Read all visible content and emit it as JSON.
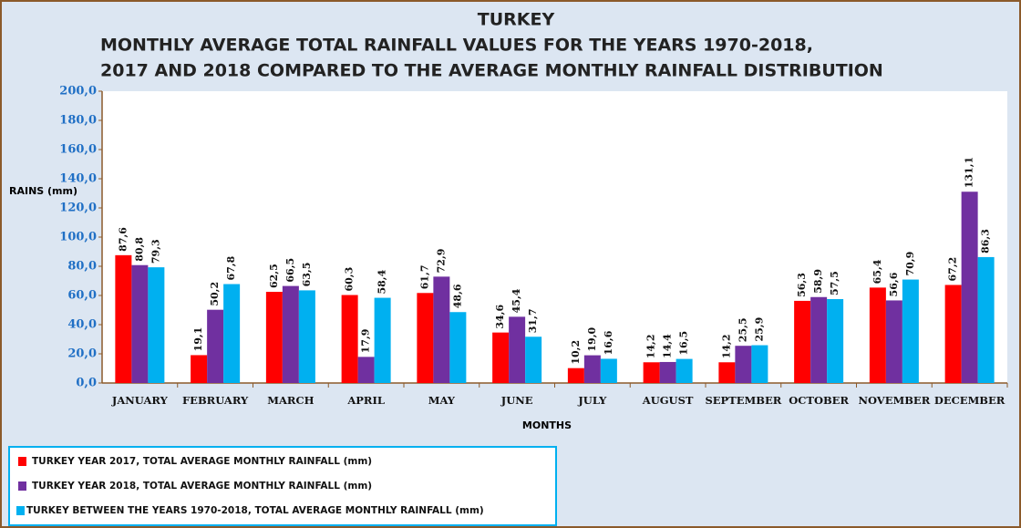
{
  "chart_data": {
    "type": "bar",
    "title": "TURKEY",
    "subtitle": [
      "MONTHLY AVERAGE TOTAL RAINFALL VALUES FOR THE YEARS 1970-2018,",
      "2017 AND 2018 COMPARED TO THE AVERAGE MONTHLY RAINFALL DISTRIBUTION"
    ],
    "ylabel": "RAINS (mm)",
    "xlabel": "MONTHS",
    "categories": [
      "JANUARY",
      "FEBRUARY",
      "MARCH",
      "APRIL",
      "MAY",
      "JUNE",
      "JULY",
      "AUGUST",
      "SEPTEMBER",
      "OCTOBER",
      "NOVEMBER",
      "DECEMBER"
    ],
    "series": [
      {
        "name": "TURKEY YEAR 2017, TOTAL AVERAGE MONTHLY RAINFALL (mm)",
        "color": "#ff0000",
        "values": [
          87.6,
          19.1,
          62.5,
          60.3,
          61.7,
          34.6,
          10.2,
          14.2,
          14.2,
          56.3,
          65.4,
          67.2
        ],
        "value_labels": [
          "87,6",
          "19,1",
          "62,5",
          "60,3",
          "61,7",
          "34,6",
          "10,2",
          "14,2",
          "14,2",
          "56,3",
          "65,4",
          "67,2"
        ]
      },
      {
        "name": "TURKEY YEAR 2018, TOTAL AVERAGE MONTHLY RAINFALL (mm)",
        "color": "#7030a0",
        "values": [
          80.8,
          50.2,
          66.5,
          17.9,
          72.9,
          45.4,
          19.0,
          14.4,
          25.5,
          58.9,
          56.6,
          131.1
        ],
        "value_labels": [
          "80,8",
          "50,2",
          "66,5",
          "17,9",
          "72,9",
          "45,4",
          "19,0",
          "14,4",
          "25,5",
          "58,9",
          "56,6",
          "131,1"
        ]
      },
      {
        "name": "TURKEY BETWEEN THE YEARS 1970-2018, TOTAL AVERAGE MONTHLY RAINFALL (mm)",
        "color": "#00b0f0",
        "values": [
          79.3,
          67.8,
          63.5,
          58.4,
          48.6,
          31.7,
          16.6,
          16.5,
          25.9,
          57.5,
          70.9,
          86.3
        ],
        "value_labels": [
          "79,3",
          "67,8",
          "63,5",
          "58,4",
          "48,6",
          "31,7",
          "16,6",
          "16,5",
          "25,9",
          "57,5",
          "70,9",
          "86,3"
        ]
      }
    ],
    "ylim": [
      0,
      200
    ],
    "yticks": [
      {
        "value": 0,
        "label": "0,0"
      },
      {
        "value": 20,
        "label": "20,0"
      },
      {
        "value": 40,
        "label": "40,0"
      },
      {
        "value": 60,
        "label": "60,0"
      },
      {
        "value": 80,
        "label": "80,0"
      },
      {
        "value": 100,
        "label": "100,0"
      },
      {
        "value": 120,
        "label": "120,0"
      },
      {
        "value": 140,
        "label": "140,0"
      },
      {
        "value": 160,
        "label": "160,0"
      },
      {
        "value": 180,
        "label": "180,0"
      },
      {
        "value": 200,
        "label": "200,0"
      }
    ],
    "legend": "bottom-left",
    "grid": false
  }
}
